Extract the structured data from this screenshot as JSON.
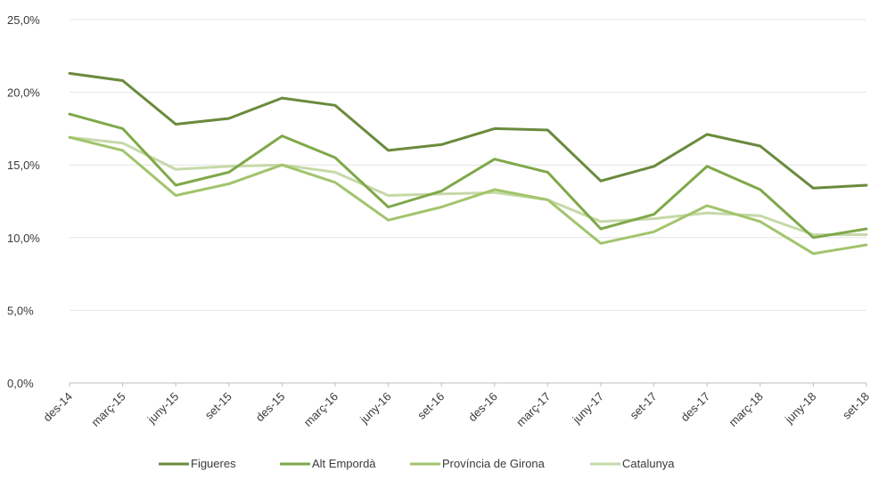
{
  "chart_data": {
    "type": "line",
    "title": "",
    "xlabel": "",
    "ylabel": "",
    "categories": [
      "des-14",
      "març-15",
      "juny-15",
      "set-15",
      "des-15",
      "març-16",
      "juny-16",
      "set-16",
      "des-16",
      "març-17",
      "juny-17",
      "set-17",
      "des-17",
      "març-18",
      "juny-18",
      "set-18"
    ],
    "y_ticks": [
      "0,0%",
      "5,0%",
      "10,0%",
      "15,0%",
      "20,0%",
      "25,0%"
    ],
    "ylim": [
      0,
      25
    ],
    "grid": true,
    "legend_position": "bottom",
    "series": [
      {
        "name": "Figueres",
        "color": "#6a8a3c",
        "values": [
          21.3,
          20.8,
          17.8,
          18.2,
          19.6,
          19.1,
          16.0,
          16.4,
          17.5,
          17.4,
          13.9,
          14.9,
          17.1,
          16.3,
          13.4,
          13.6
        ]
      },
      {
        "name": "Alt Empordà",
        "color": "#7fa84a",
        "values": [
          18.5,
          17.5,
          13.6,
          14.5,
          17.0,
          15.5,
          12.1,
          13.2,
          15.4,
          14.5,
          10.6,
          11.6,
          14.9,
          13.3,
          10.0,
          10.6
        ]
      },
      {
        "name": "Província de Girona",
        "color": "#a2c46c",
        "values": [
          16.9,
          16.0,
          12.9,
          13.7,
          15.0,
          13.8,
          11.2,
          12.1,
          13.3,
          12.6,
          9.6,
          10.4,
          12.2,
          11.1,
          8.9,
          9.5
        ]
      },
      {
        "name": "Catalunya",
        "color": "#c6d9a8",
        "values": [
          16.9,
          16.5,
          14.7,
          14.9,
          15.0,
          14.5,
          12.9,
          13.0,
          13.1,
          12.6,
          11.1,
          11.3,
          11.7,
          11.5,
          10.2,
          10.2
        ]
      }
    ]
  }
}
